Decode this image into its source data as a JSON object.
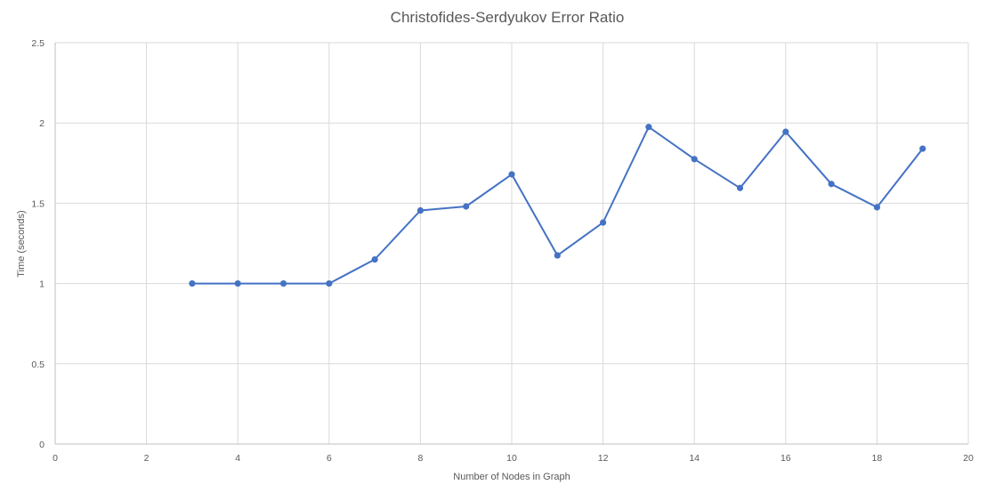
{
  "chart_data": {
    "type": "scatter",
    "title": "Christofides-Serdyukov Error Ratio",
    "xlabel": "Number of Nodes in Graph",
    "ylabel": "Time (seconds)",
    "xlim": [
      0,
      20
    ],
    "ylim": [
      0,
      2.5
    ],
    "xticks": [
      0,
      2,
      4,
      6,
      8,
      10,
      12,
      14,
      16,
      18,
      20
    ],
    "yticks": [
      0,
      0.5,
      1,
      1.5,
      2,
      2.5
    ],
    "ytick_labels": [
      "0",
      "0.5",
      "1",
      "1.5",
      "2",
      "2.5"
    ],
    "grid": true,
    "legend": "none",
    "series": [
      {
        "color": "#4472c4",
        "style": "line-with-markers",
        "x": [
          3,
          4,
          5,
          6,
          7,
          8,
          9,
          10,
          11,
          12,
          13,
          14,
          15,
          16,
          17,
          18,
          19
        ],
        "y": [
          1.0,
          1.0,
          1.0,
          1.0,
          1.15,
          1.455,
          1.48,
          1.68,
          1.175,
          1.38,
          1.975,
          1.775,
          1.595,
          1.945,
          1.62,
          1.475,
          1.84
        ]
      }
    ]
  }
}
